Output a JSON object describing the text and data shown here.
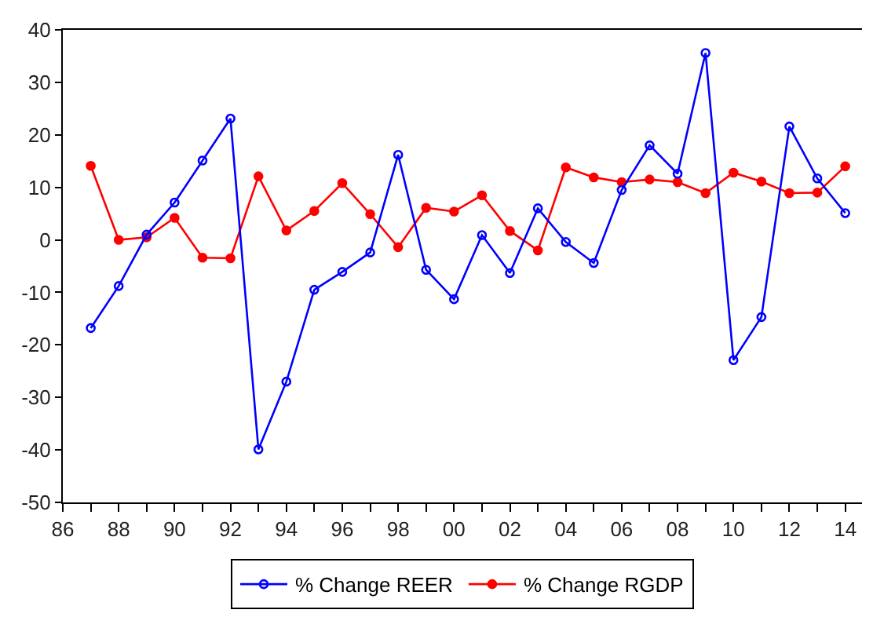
{
  "chart_data": {
    "type": "line",
    "x": [
      1987,
      1988,
      1989,
      1990,
      1991,
      1992,
      1993,
      1994,
      1995,
      1996,
      1997,
      1998,
      1999,
      2000,
      2001,
      2002,
      2003,
      2004,
      2005,
      2006,
      2007,
      2008,
      2009,
      2010,
      2011,
      2012,
      2013,
      2014
    ],
    "series": [
      {
        "name": "% Change REER",
        "color": "#0000ff",
        "marker": "circle-open",
        "values": [
          -16.8,
          -8.8,
          1.0,
          7.1,
          15.1,
          23.1,
          -39.9,
          -27.0,
          -9.5,
          -6.1,
          -2.4,
          16.2,
          -5.7,
          -11.3,
          0.9,
          -6.3,
          6.0,
          -0.4,
          -4.4,
          9.5,
          18.0,
          12.6,
          35.6,
          -22.9,
          -14.7,
          21.6,
          11.7,
          5.1
        ]
      },
      {
        "name": "% Change RGDP",
        "color": "#ff0000",
        "marker": "circle",
        "values": [
          14.1,
          0.0,
          0.5,
          4.2,
          -3.4,
          -3.5,
          12.1,
          1.8,
          5.5,
          10.8,
          4.9,
          -1.4,
          6.1,
          5.4,
          8.5,
          1.7,
          -2.0,
          13.8,
          11.9,
          11.0,
          11.5,
          11.0,
          8.9,
          12.8,
          11.1,
          8.9,
          9.0,
          14.0
        ]
      }
    ],
    "ylim": [
      -50,
      40
    ],
    "yticks": [
      -50,
      -40,
      -30,
      -20,
      -10,
      0,
      10,
      20,
      30,
      40
    ],
    "xlim": [
      1986,
      2014.6
    ],
    "xticks": [
      {
        "value": 1986,
        "label": "86"
      },
      {
        "value": 1987,
        "label": null
      },
      {
        "value": 1988,
        "label": "88"
      },
      {
        "value": 1989,
        "label": null
      },
      {
        "value": 1990,
        "label": "90"
      },
      {
        "value": 1991,
        "label": null
      },
      {
        "value": 1992,
        "label": "92"
      },
      {
        "value": 1993,
        "label": null
      },
      {
        "value": 1994,
        "label": "94"
      },
      {
        "value": 1995,
        "label": null
      },
      {
        "value": 1996,
        "label": "96"
      },
      {
        "value": 1997,
        "label": null
      },
      {
        "value": 1998,
        "label": "98"
      },
      {
        "value": 1999,
        "label": null
      },
      {
        "value": 2000,
        "label": "00"
      },
      {
        "value": 2001,
        "label": null
      },
      {
        "value": 2002,
        "label": "02"
      },
      {
        "value": 2003,
        "label": null
      },
      {
        "value": 2004,
        "label": "04"
      },
      {
        "value": 2005,
        "label": null
      },
      {
        "value": 2006,
        "label": "06"
      },
      {
        "value": 2007,
        "label": null
      },
      {
        "value": 2008,
        "label": "08"
      },
      {
        "value": 2009,
        "label": null
      },
      {
        "value": 2010,
        "label": "10"
      },
      {
        "value": 2011,
        "label": null
      },
      {
        "value": 2012,
        "label": "12"
      },
      {
        "value": 2013,
        "label": null
      },
      {
        "value": 2014,
        "label": "14"
      }
    ],
    "legend": "bottom",
    "line_style": "solid"
  }
}
